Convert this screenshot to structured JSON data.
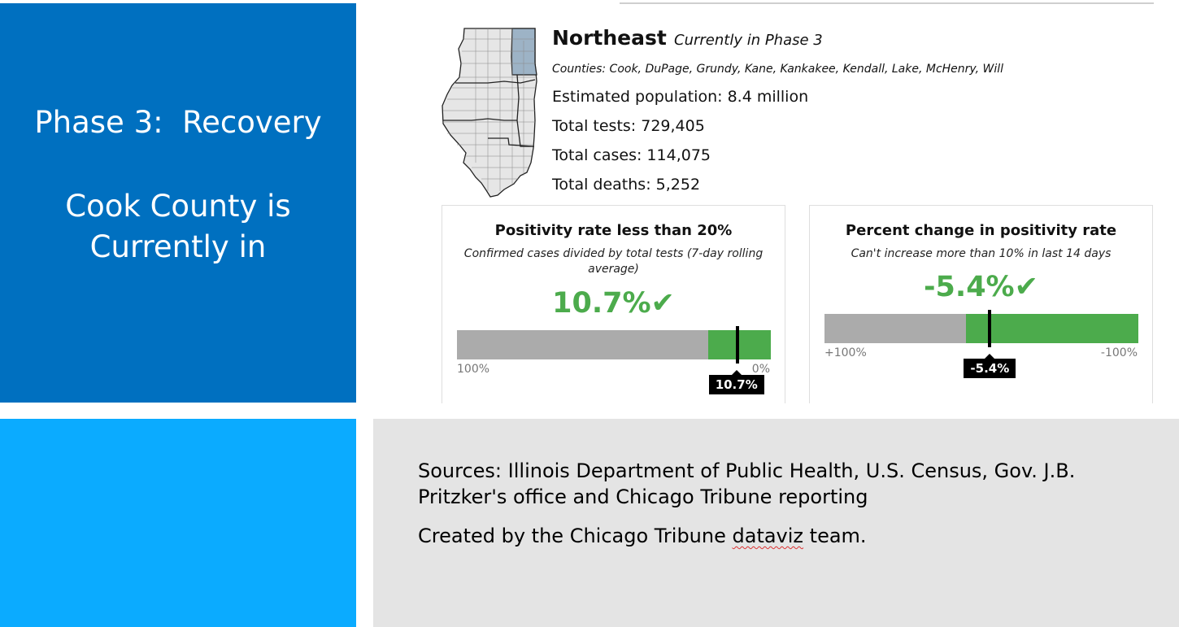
{
  "slide": {
    "phase_title": "Phase 3:  Recovery",
    "county_text": "Cook County is Currently in"
  },
  "region": {
    "name": "Northeast",
    "phase": "Currently in Phase 3",
    "counties": "Counties: Cook, DuPage, Grundy, Kane, Kankakee, Kendall, Lake, McHenry, Will",
    "population": "Estimated population: 8.4 million",
    "tests": "Total tests: 729,405",
    "cases": "Total cases: 114,075",
    "deaths": "Total deaths: 5,252"
  },
  "metric1": {
    "title": "Positivity rate less than 20%",
    "subtitle": "Confirmed cases divided by total tests (7-day rolling average)",
    "value": "10.7%",
    "check": "✔",
    "left_label": "100%",
    "right_label": "0%",
    "marker_label": "10.7%",
    "marker_value": 10.7,
    "threshold": 20
  },
  "metric2": {
    "title": "Percent change in positivity rate",
    "subtitle": "Can't increase more than 10% in last 14 days",
    "value": "-5.4%",
    "check": "✔",
    "left_label": "+100%",
    "right_label": "-100%",
    "marker_label": "-5.4%",
    "marker_value": -5.4,
    "threshold": 10
  },
  "footer": {
    "sources": "Sources: Illinois Department of Public Health, U.S. Census, Gov. J.B. Pritzker's office and Chicago Tribune reporting",
    "credit_before": "Created by the Chicago Tribune ",
    "credit_word": "dataviz",
    "credit_after": " team."
  },
  "colors": {
    "blue": "#0070c0",
    "light_blue": "#0babff",
    "green": "#4cab4c",
    "bar_gray": "#ababab",
    "highlight_region": "#9db3c6"
  },
  "icons": {
    "map": "illinois-map-icon",
    "check": "check-icon"
  }
}
